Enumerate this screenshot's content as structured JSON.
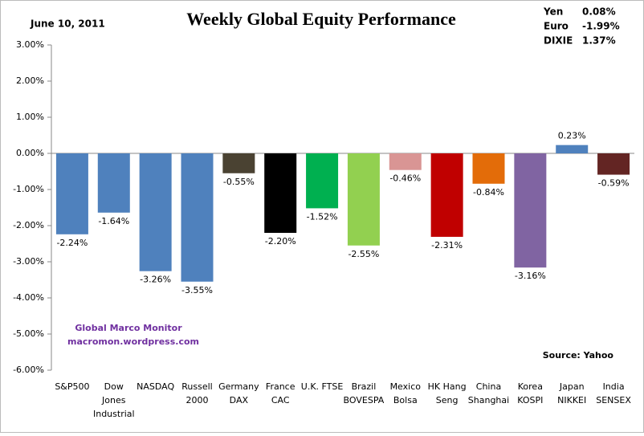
{
  "chart_data": {
    "type": "bar",
    "title": "Weekly Global Equity Performance",
    "date": "June 10, 2011",
    "annotations": [
      "Global Marco Monitor",
      "macromon.wordpress.com"
    ],
    "source": "Source:  Yahoo",
    "categories": [
      "S&P500",
      "Dow\nJones\nIndustrial",
      "NASDAQ",
      "Russell\n2000",
      "Germany\nDAX",
      "France\nCAC",
      "U.K. FTSE",
      "Brazil\nBOVESPA",
      "Mexico\nBolsa",
      "HK Hang\nSeng",
      "China\nShanghai",
      "Korea\nKOSPI",
      "Japan\nNIKKEI",
      "India\nSENSEX"
    ],
    "values": [
      -2.24,
      -1.64,
      -3.26,
      -3.55,
      -0.55,
      -2.2,
      -1.52,
      -2.55,
      -0.46,
      -2.31,
      -0.84,
      -3.16,
      0.23,
      -0.59
    ],
    "value_labels": [
      "-2.24%",
      "-1.64%",
      "-3.26%",
      "-3.55%",
      "-0.55%",
      "-2.20%",
      "-1.52%",
      "-2.55%",
      "-0.46%",
      "-2.31%",
      "-0.84%",
      "-3.16%",
      "0.23%",
      "-0.59%"
    ],
    "colors": [
      "#4f81bd",
      "#4f81bd",
      "#4f81bd",
      "#4f81bd",
      "#4a4232",
      "#000000",
      "#00b050",
      "#92d050",
      "#d99594",
      "#c00000",
      "#e36c09",
      "#8064a2",
      "#4f81bd",
      "#632523"
    ],
    "ylim": [
      -6,
      3
    ],
    "yticks": [
      {
        "value": 3,
        "label": "3.00%"
      },
      {
        "value": 2,
        "label": "2.00%"
      },
      {
        "value": 1,
        "label": "1.00%"
      },
      {
        "value": 0,
        "label": "0.00%"
      },
      {
        "value": -1,
        "label": "-1.00%"
      },
      {
        "value": -2,
        "label": "-2.00%"
      },
      {
        "value": -3,
        "label": "-3.00%"
      },
      {
        "value": -4,
        "label": "-4.00%"
      },
      {
        "value": -5,
        "label": "-5.00%"
      },
      {
        "value": -6,
        "label": "-6.00%"
      }
    ],
    "currencies": [
      {
        "name": "Yen",
        "value": 0.08,
        "value_label": "0.08%",
        "color": "#00b050"
      },
      {
        "name": "Euro",
        "value": -1.99,
        "value_label": "-1.99%",
        "color": "#c00000"
      },
      {
        "name": "DIXIE",
        "value": 1.37,
        "value_label": "1.37%",
        "color": "#00b050"
      }
    ]
  }
}
